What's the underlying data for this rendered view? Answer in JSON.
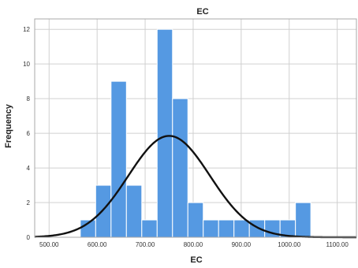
{
  "chart_data": {
    "type": "bar",
    "subtype": "histogram",
    "title": "EC",
    "xlabel": "EC",
    "ylabel": "Frequency",
    "xlim": [
      470,
      1140
    ],
    "ylim": [
      0,
      12.6
    ],
    "x_ticks": [
      500,
      600,
      700,
      800,
      900,
      1000,
      1100
    ],
    "x_tick_labels": [
      "500.00",
      "600.00",
      "700.00",
      "800.00",
      "900.00",
      "1000.00",
      "1100.00"
    ],
    "y_ticks": [
      0,
      2,
      4,
      6,
      8,
      10,
      12
    ],
    "y_tick_labels": [
      "0",
      "2",
      "4",
      "6",
      "8",
      "10",
      "12"
    ],
    "bins": [
      {
        "start": 565,
        "end": 597,
        "count": 1
      },
      {
        "start": 597,
        "end": 629,
        "count": 3
      },
      {
        "start": 629,
        "end": 661,
        "count": 9
      },
      {
        "start": 661,
        "end": 693,
        "count": 3
      },
      {
        "start": 693,
        "end": 725,
        "count": 1
      },
      {
        "start": 725,
        "end": 757,
        "count": 12
      },
      {
        "start": 757,
        "end": 789,
        "count": 8
      },
      {
        "start": 789,
        "end": 821,
        "count": 2
      },
      {
        "start": 821,
        "end": 853,
        "count": 1
      },
      {
        "start": 853,
        "end": 885,
        "count": 1
      },
      {
        "start": 885,
        "end": 917,
        "count": 1
      },
      {
        "start": 917,
        "end": 949,
        "count": 1
      },
      {
        "start": 949,
        "end": 981,
        "count": 1
      },
      {
        "start": 981,
        "end": 1013,
        "count": 1
      },
      {
        "start": 1013,
        "end": 1045,
        "count": 2
      }
    ],
    "normal_curve": {
      "mean": 750,
      "sd": 85,
      "peak": 5.85
    },
    "grid": true,
    "colors": {
      "bar": "#5599e2",
      "bar_edge": "#ffffff",
      "curve": "#111111",
      "grid": "#d0d0d0",
      "frame": "#a8a8a8"
    }
  }
}
